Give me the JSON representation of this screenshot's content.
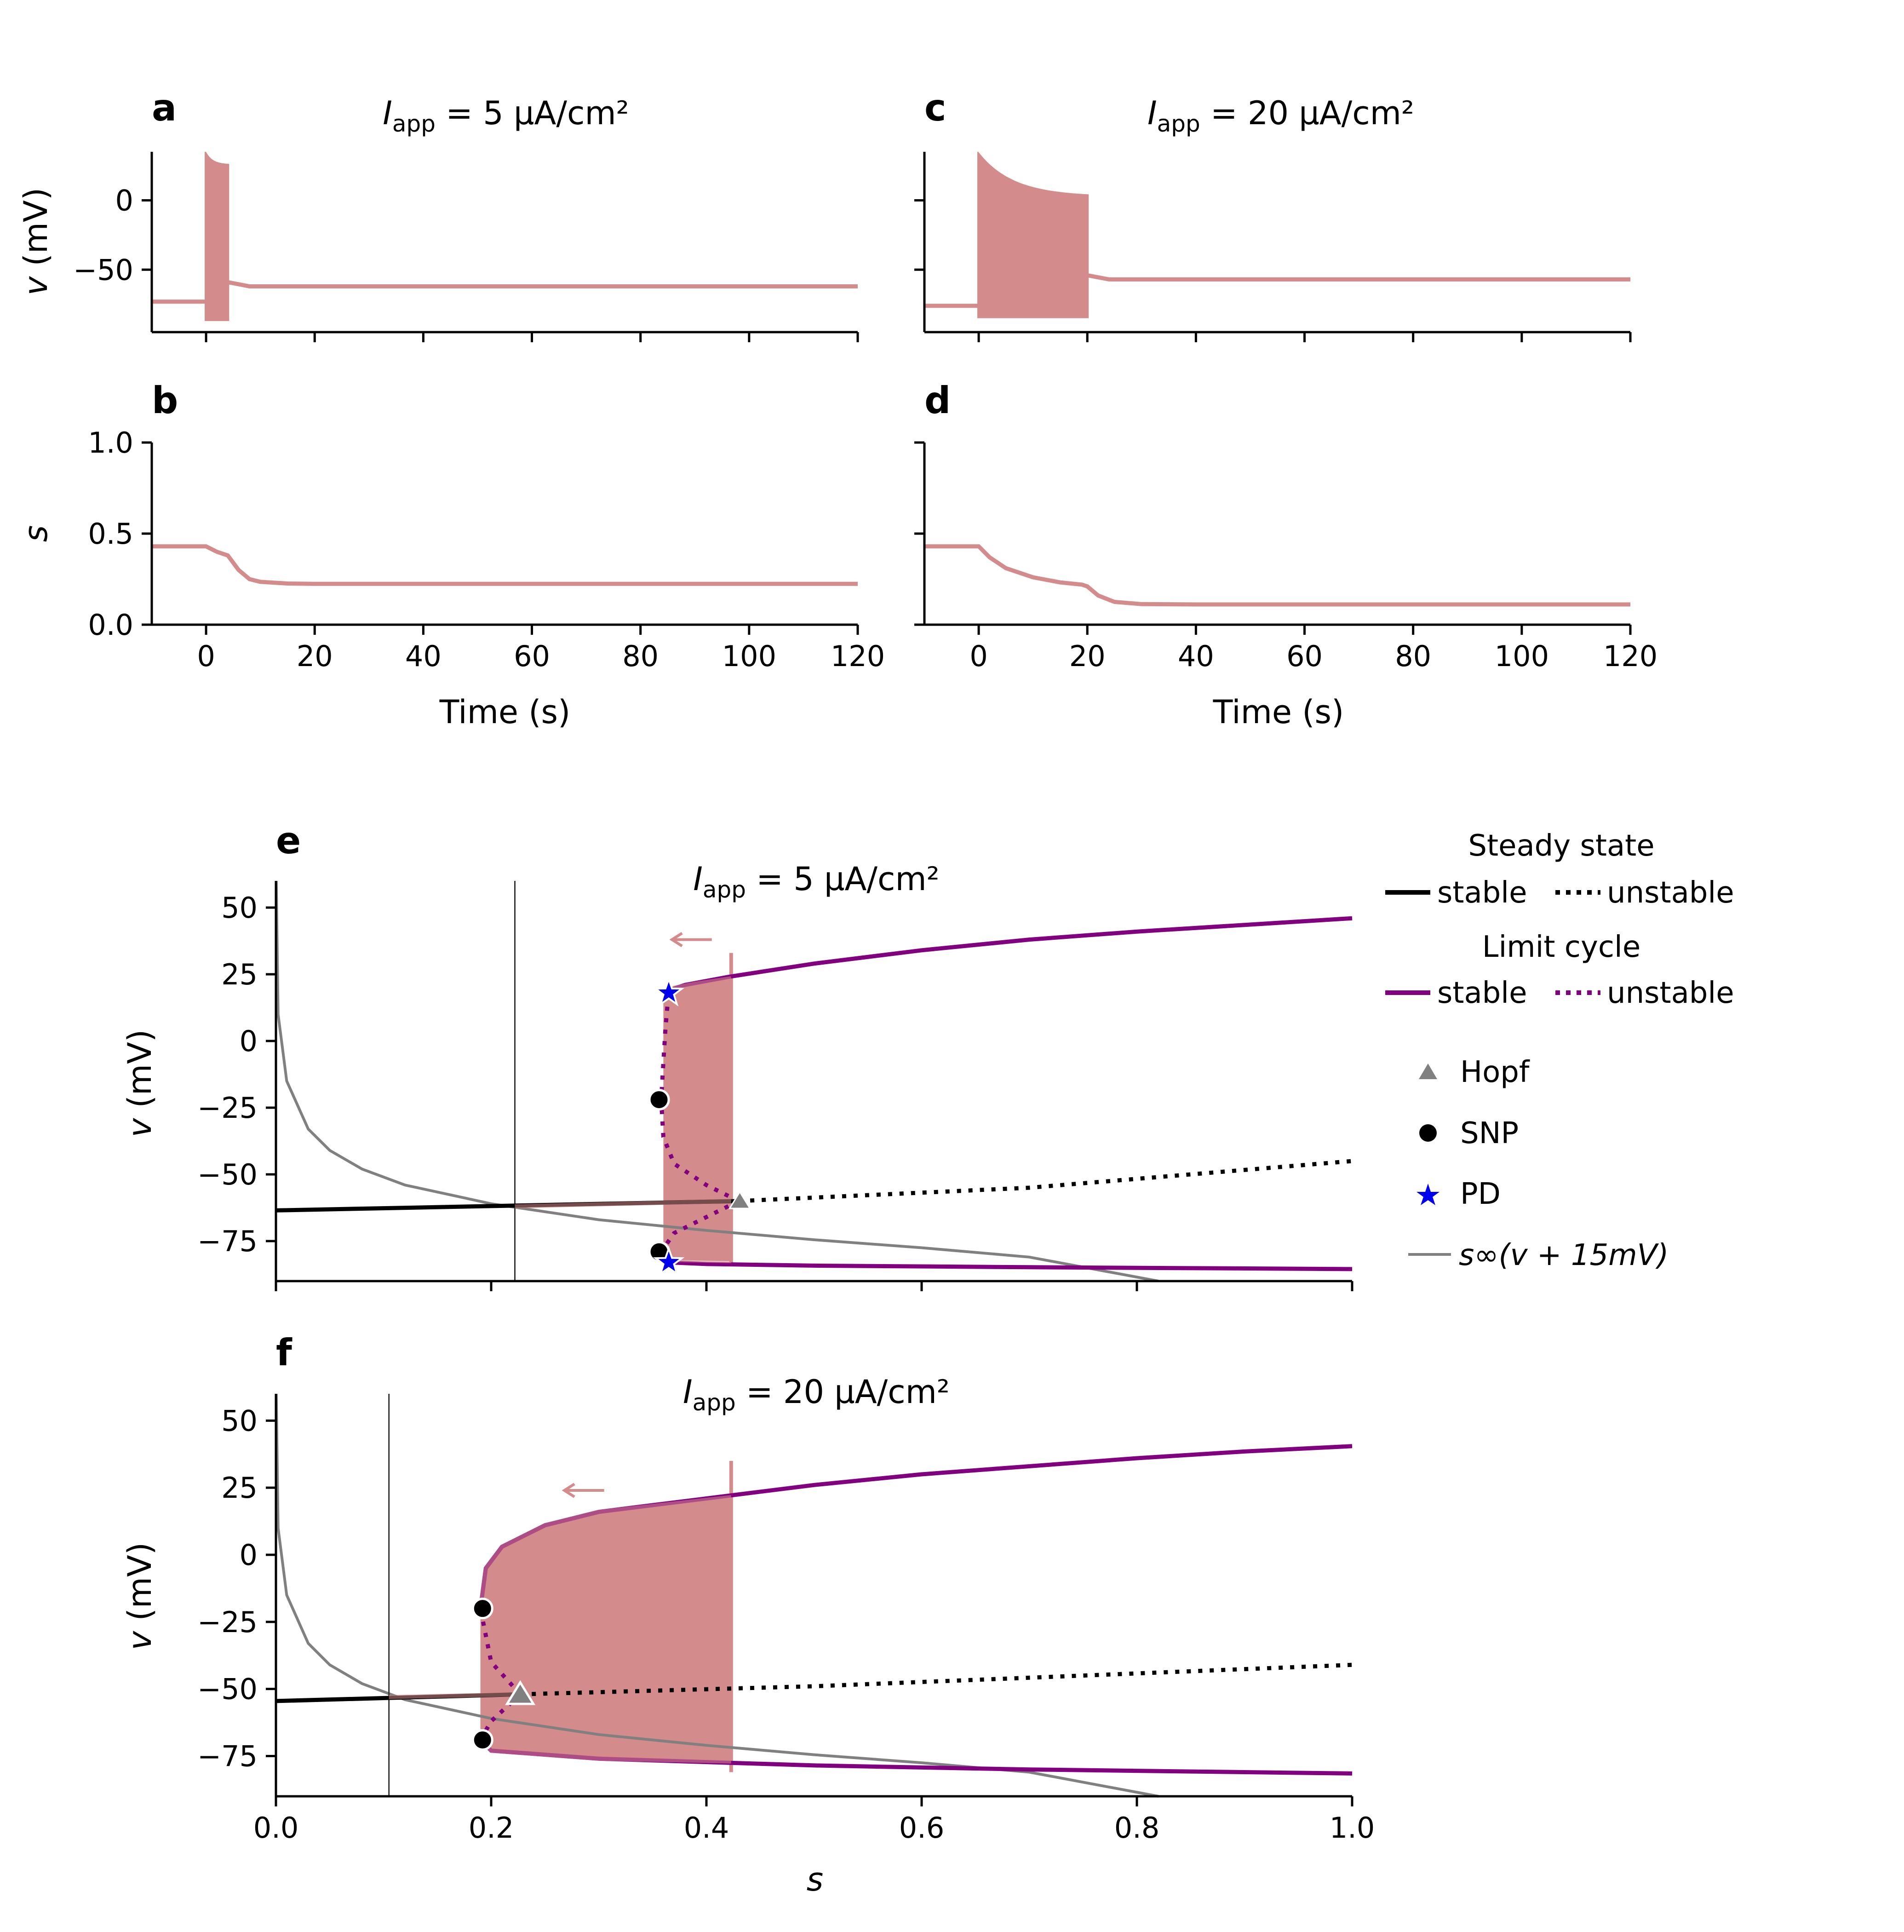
{
  "colors": {
    "trace": "#d48b8b",
    "fill": "#d48b8b",
    "limit_cycle": "#800080",
    "steady": "#000000",
    "s_inf": "#808080",
    "hopf": "#808080",
    "snp": "#000000",
    "pd": "#0000ee",
    "vline": "#333333"
  },
  "legend": {
    "steady_title": "Steady state",
    "limit_title": "Limit cycle",
    "stable": "stable",
    "unstable": "unstable",
    "hopf": "Hopf",
    "snp": "SNP",
    "pd": "PD",
    "s_inf_label": "s∞(v + 15mV)"
  },
  "chart_data": [
    {
      "id": "a",
      "letter": "a",
      "type": "line",
      "title_symbol": "I",
      "title_sub": "app",
      "title_rest": " = 5 μA/cm²",
      "xlim": [
        -10,
        120
      ],
      "ylim": [
        -95,
        35
      ],
      "yticks": [
        0,
        -50
      ],
      "ytick_labels": [
        "0",
        "−50"
      ],
      "xticks": [
        0,
        20,
        40,
        60,
        80,
        100,
        120
      ],
      "ylabel_italic": "v",
      "ylabel_rest": " (mV)",
      "pre_level": -73,
      "post_level": -62,
      "burst": {
        "start": 0,
        "end": 4,
        "upper_start": 33,
        "upper_end": 25,
        "lower": -86
      }
    },
    {
      "id": "b",
      "letter": "b",
      "type": "line",
      "xlim": [
        -10,
        120
      ],
      "ylim": [
        0,
        1
      ],
      "yticks": [
        0,
        0.5,
        1
      ],
      "ytick_labels": [
        "0.0",
        "0.5",
        "1.0"
      ],
      "xticks": [
        0,
        20,
        40,
        60,
        80,
        100,
        120
      ],
      "xtick_labels": [
        "0",
        "20",
        "40",
        "60",
        "80",
        "100",
        "120"
      ],
      "xlabel": "Time (s)",
      "ylabel_italic": "s",
      "points": [
        [
          -10,
          0.43
        ],
        [
          0,
          0.43
        ],
        [
          2,
          0.4
        ],
        [
          4,
          0.38
        ],
        [
          6,
          0.3
        ],
        [
          8,
          0.25
        ],
        [
          10,
          0.235
        ],
        [
          15,
          0.226
        ],
        [
          20,
          0.224
        ],
        [
          120,
          0.224
        ]
      ]
    },
    {
      "id": "c",
      "letter": "c",
      "type": "line",
      "title_symbol": "I",
      "title_sub": "app",
      "title_rest": " = 20 μA/cm²",
      "xlim": [
        -10,
        120
      ],
      "ylim": [
        -95,
        35
      ],
      "yticks": [
        0,
        -50
      ],
      "xticks": [
        0,
        20,
        40,
        60,
        80,
        100,
        120
      ],
      "pre_level": -76,
      "post_level": -57,
      "burst": {
        "start": 0,
        "end": 20,
        "upper_start": 33,
        "upper_end": 2,
        "lower": -84
      }
    },
    {
      "id": "d",
      "letter": "d",
      "type": "line",
      "xlim": [
        -10,
        120
      ],
      "ylim": [
        0,
        1
      ],
      "yticks": [
        0,
        0.5,
        1
      ],
      "xticks": [
        0,
        20,
        40,
        60,
        80,
        100,
        120
      ],
      "xtick_labels": [
        "0",
        "20",
        "40",
        "60",
        "80",
        "100",
        "120"
      ],
      "xlabel": "Time (s)",
      "points": [
        [
          -10,
          0.43
        ],
        [
          0,
          0.43
        ],
        [
          2,
          0.37
        ],
        [
          5,
          0.31
        ],
        [
          10,
          0.26
        ],
        [
          15,
          0.232
        ],
        [
          19,
          0.22
        ],
        [
          20,
          0.21
        ],
        [
          22,
          0.16
        ],
        [
          25,
          0.125
        ],
        [
          30,
          0.113
        ],
        [
          40,
          0.111
        ],
        [
          120,
          0.111
        ]
      ]
    },
    {
      "id": "e",
      "letter": "e",
      "type": "line",
      "title_symbol": "I",
      "title_sub": "app",
      "title_rest": " = 5 μA/cm²",
      "xlim": [
        0,
        1
      ],
      "ylim": [
        -90,
        60
      ],
      "yticks": [
        50,
        25,
        0,
        -25,
        -50,
        -75
      ],
      "ytick_labels": [
        "50",
        "25",
        "0",
        "−25",
        "−50",
        "−75"
      ],
      "xticks": [
        0,
        0.2,
        0.4,
        0.6,
        0.8,
        1.0
      ],
      "ylabel_italic": "v",
      "ylabel_rest": " (mV)",
      "vline_s": 0.222,
      "steady_stable": [
        [
          0,
          -63.5
        ],
        [
          0.43,
          -60
        ]
      ],
      "steady_unstable": [
        [
          0.43,
          -60
        ],
        [
          0.7,
          -55
        ],
        [
          1.0,
          -45
        ]
      ],
      "lc_upper_stable": [
        [
          0.36,
          15
        ],
        [
          0.365,
          19
        ],
        [
          0.38,
          21
        ],
        [
          0.42,
          24
        ],
        [
          0.5,
          29
        ],
        [
          0.6,
          34
        ],
        [
          0.7,
          38
        ],
        [
          0.8,
          41
        ],
        [
          0.9,
          43.5
        ],
        [
          1.0,
          46
        ]
      ],
      "lc_lower_stable": [
        [
          0.36,
          -82
        ],
        [
          0.365,
          -83
        ],
        [
          0.4,
          -83.6
        ],
        [
          0.5,
          -84.2
        ],
        [
          0.7,
          -84.8
        ],
        [
          1.0,
          -85.5
        ]
      ],
      "lc_upper_unstable": [
        [
          0.43,
          -60
        ],
        [
          0.4,
          -54
        ],
        [
          0.37,
          -46
        ],
        [
          0.36,
          -36
        ],
        [
          0.358,
          -22
        ],
        [
          0.36,
          -8
        ],
        [
          0.362,
          5
        ],
        [
          0.365,
          19
        ]
      ],
      "lc_lower_unstable": [
        [
          0.43,
          -60
        ],
        [
          0.4,
          -66
        ],
        [
          0.37,
          -72
        ],
        [
          0.358,
          -79
        ]
      ],
      "burst_band": {
        "s_min": 0.36,
        "s_max": 0.423,
        "top": 33,
        "bottom": -84
      },
      "traj_upper": [
        [
          0.36,
          14
        ],
        [
          0.362,
          18
        ],
        [
          0.37,
          20
        ],
        [
          0.39,
          21.5
        ],
        [
          0.423,
          23.5
        ]
      ],
      "traj_lower": [
        [
          0.36,
          -82
        ],
        [
          0.423,
          -82.5
        ]
      ],
      "traj_resting": [
        [
          0.222,
          -62
        ],
        [
          0.423,
          -60
        ]
      ],
      "arrow": {
        "from": [
          0.405,
          38
        ],
        "to": [
          0.368,
          38
        ]
      },
      "hopf": [
        [
          0.431,
          -60
        ]
      ],
      "snp": [
        [
          0.356,
          -22
        ],
        [
          0.356,
          -79
        ]
      ],
      "pd": [
        [
          0.365,
          18
        ],
        [
          0.365,
          -83
        ]
      ],
      "hopf_style": "filled",
      "s_inf_curve": [
        [
          0.0003,
          60
        ],
        [
          0.002,
          10
        ],
        [
          0.01,
          -15
        ],
        [
          0.03,
          -33
        ],
        [
          0.05,
          -41
        ],
        [
          0.08,
          -48
        ],
        [
          0.12,
          -54
        ],
        [
          0.2,
          -61
        ],
        [
          0.3,
          -67
        ],
        [
          0.4,
          -71
        ],
        [
          0.5,
          -74.5
        ],
        [
          0.6,
          -77.5
        ],
        [
          0.7,
          -81
        ],
        [
          0.82,
          -90
        ]
      ]
    },
    {
      "id": "f",
      "letter": "f",
      "type": "line",
      "title_symbol": "I",
      "title_sub": "app",
      "title_rest": " = 20 μA/cm²",
      "xlim": [
        0,
        1
      ],
      "ylim": [
        -90,
        60
      ],
      "yticks": [
        50,
        25,
        0,
        -25,
        -50,
        -75
      ],
      "ytick_labels": [
        "50",
        "25",
        "0",
        "−25",
        "−50",
        "−75"
      ],
      "xticks": [
        0,
        0.2,
        0.4,
        0.6,
        0.8,
        1.0
      ],
      "xtick_labels": [
        "0.0",
        "0.2",
        "0.4",
        "0.6",
        "0.8",
        "1.0"
      ],
      "xlabel": "s",
      "ylabel_italic": "v",
      "ylabel_rest": " (mV)",
      "vline_s": 0.105,
      "steady_stable": [
        [
          0,
          -54.5
        ],
        [
          0.227,
          -52
        ]
      ],
      "steady_unstable": [
        [
          0.227,
          -52
        ],
        [
          0.5,
          -49
        ],
        [
          1.0,
          -41
        ]
      ],
      "lc_upper_stable": [
        [
          0.19,
          -20
        ],
        [
          0.195,
          -5
        ],
        [
          0.21,
          3
        ],
        [
          0.25,
          11
        ],
        [
          0.3,
          16
        ],
        [
          0.4,
          21
        ],
        [
          0.5,
          26
        ],
        [
          0.6,
          30
        ],
        [
          0.7,
          33
        ],
        [
          0.8,
          36
        ],
        [
          0.9,
          38.5
        ],
        [
          1.0,
          40.5
        ]
      ],
      "lc_lower_stable": [
        [
          0.19,
          -69
        ],
        [
          0.2,
          -73
        ],
        [
          0.3,
          -76
        ],
        [
          0.5,
          -78.5
        ],
        [
          0.7,
          -80
        ],
        [
          1.0,
          -81.5
        ]
      ],
      "lc_upper_unstable": [
        [
          0.227,
          -52
        ],
        [
          0.2,
          -40
        ],
        [
          0.19,
          -20
        ]
      ],
      "lc_lower_unstable": [
        [
          0.227,
          -52
        ],
        [
          0.2,
          -62
        ],
        [
          0.19,
          -69
        ]
      ],
      "burst_band": {
        "s_min": 0.19,
        "s_max": 0.423,
        "top": 35,
        "bottom": -81
      },
      "traj_upper": [
        [
          0.19,
          -20
        ],
        [
          0.195,
          -5
        ],
        [
          0.21,
          3
        ],
        [
          0.25,
          11
        ],
        [
          0.3,
          16
        ],
        [
          0.423,
          21.5
        ]
      ],
      "traj_lower": [
        [
          0.19,
          -69
        ],
        [
          0.2,
          -73
        ],
        [
          0.3,
          -76
        ],
        [
          0.423,
          -77
        ]
      ],
      "traj_resting": [
        [
          0.105,
          -53
        ],
        [
          0.227,
          -52
        ]
      ],
      "arrow": {
        "from": [
          0.305,
          24
        ],
        "to": [
          0.268,
          24
        ]
      },
      "hopf": [
        [
          0.227,
          -52
        ]
      ],
      "snp": [
        [
          0.192,
          -20
        ],
        [
          0.192,
          -69
        ]
      ],
      "pd": [],
      "hopf_style": "open",
      "s_inf_curve": [
        [
          0.0003,
          60
        ],
        [
          0.002,
          10
        ],
        [
          0.01,
          -15
        ],
        [
          0.03,
          -33
        ],
        [
          0.05,
          -41
        ],
        [
          0.08,
          -48
        ],
        [
          0.12,
          -54
        ],
        [
          0.2,
          -61
        ],
        [
          0.3,
          -67
        ],
        [
          0.4,
          -71
        ],
        [
          0.5,
          -74.5
        ],
        [
          0.6,
          -77.5
        ],
        [
          0.7,
          -81
        ],
        [
          0.82,
          -90
        ]
      ]
    }
  ]
}
